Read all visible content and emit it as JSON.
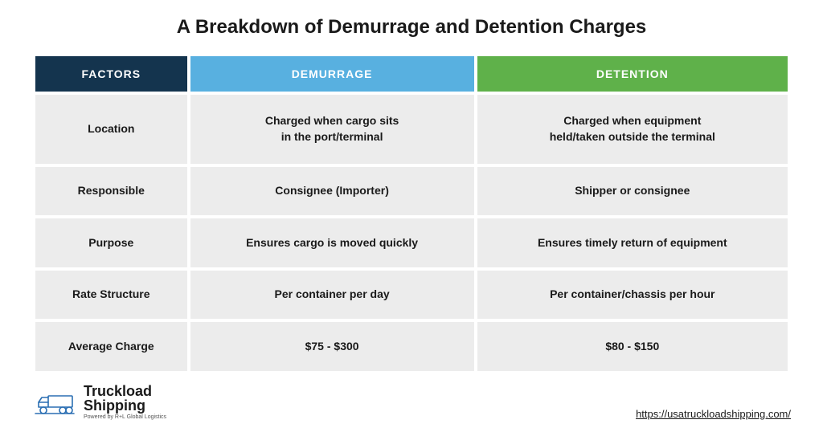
{
  "title": "A Breakdown of Demurrage and Detention Charges",
  "headers": {
    "factors": {
      "label": "FACTORS",
      "bg": "#14344e"
    },
    "demurrage": {
      "label": "DEMURRAGE",
      "bg": "#58b0e0"
    },
    "detention": {
      "label": "DETENTION",
      "bg": "#5fb14a"
    }
  },
  "rows": [
    {
      "factor": "Location",
      "demurrage": "Charged when cargo sits\nin the port/terminal",
      "detention": "Charged when equipment\nheld/taken outside the terminal"
    },
    {
      "factor": "Responsible",
      "demurrage": "Consignee (Importer)",
      "detention": "Shipper or consignee"
    },
    {
      "factor": "Purpose",
      "demurrage": "Ensures cargo is moved quickly",
      "detention": "Ensures timely return of equipment"
    },
    {
      "factor": "Rate Structure",
      "demurrage": "Per container per day",
      "detention": "Per container/chassis per hour"
    },
    {
      "factor": "Average Charge",
      "demurrage": "$75 - $300",
      "detention": "$80 - $150"
    }
  ],
  "row_bg": "#ececec",
  "cell_font_size": 14,
  "header_font_size": 14,
  "logo": {
    "line1": "Truckload",
    "line2": "Shipping",
    "tagline": "Powered by R+L Global Logistics",
    "stroke": "#2b6fb3"
  },
  "url": "https://usatruckloadshipping.com/"
}
